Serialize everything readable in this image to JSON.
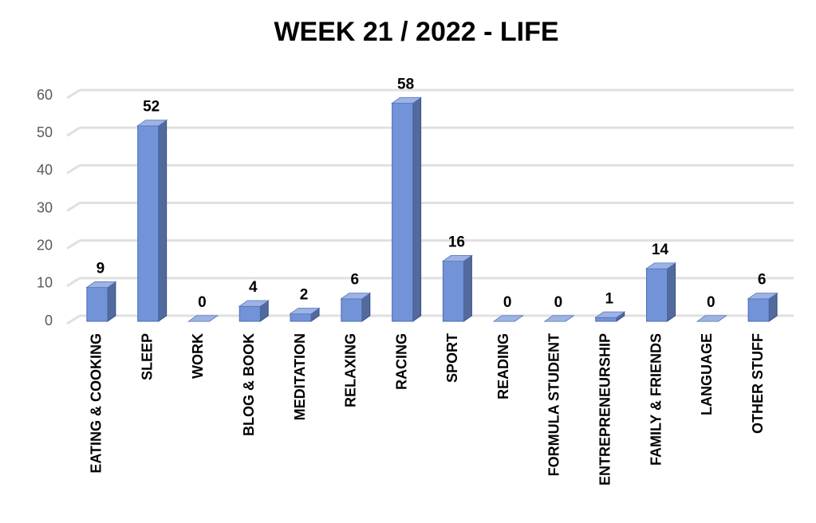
{
  "chart_data": {
    "type": "bar3d",
    "title": "WEEK 21 / 2022 - LIFE",
    "categories": [
      "EATING & COOKING",
      "SLEEP",
      "WORK",
      "BLOG & BOOK",
      "MEDITATION",
      "RELAXING",
      "RACING",
      "SPORT",
      "READING",
      "FORMULA STUDENT",
      "ENTREPRENEURSHIP",
      "FAMILY & FRIENDS",
      "LANGUAGE",
      "OTHER STUFF"
    ],
    "values": [
      9,
      52,
      0,
      4,
      2,
      6,
      58,
      16,
      0,
      0,
      1,
      14,
      0,
      6
    ],
    "color": "#7393d9",
    "ylim": [
      0,
      60
    ],
    "yticks": [
      0,
      10,
      20,
      30,
      40,
      50,
      60
    ],
    "grid": true
  }
}
